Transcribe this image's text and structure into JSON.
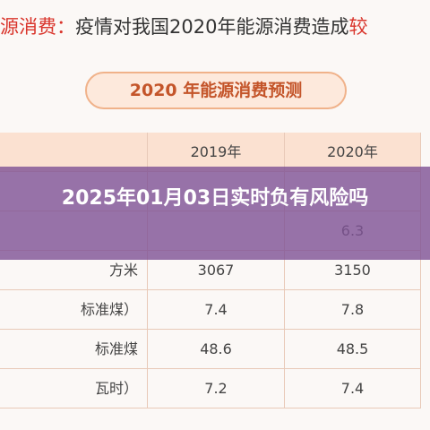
{
  "header": {
    "parts": [
      {
        "text": "源消费：",
        "accent": true
      },
      {
        "text": "疫情对我国2020年能源消费造成",
        "accent": false
      },
      {
        "text": "较",
        "accent": true
      }
    ]
  },
  "pill": "2020 年能源消费预测",
  "table": {
    "columns": {
      "y2019": "2019年",
      "y2020": "2020年"
    },
    "rows": [
      {
        "y2020": "6.3"
      },
      {
        "label": "方米",
        "y2019": "3067",
        "y2020": "3150"
      },
      {
        "label": "标准煤）",
        "y2019": "7.4",
        "y2020": "7.8"
      },
      {
        "label": "标准煤",
        "y2019": "48.6",
        "y2020": "48.5"
      },
      {
        "label": "瓦时）",
        "y2019": "7.2",
        "y2020": "7.4"
      }
    ]
  },
  "overlay": "2025年01月03日实时负有风险吗"
}
